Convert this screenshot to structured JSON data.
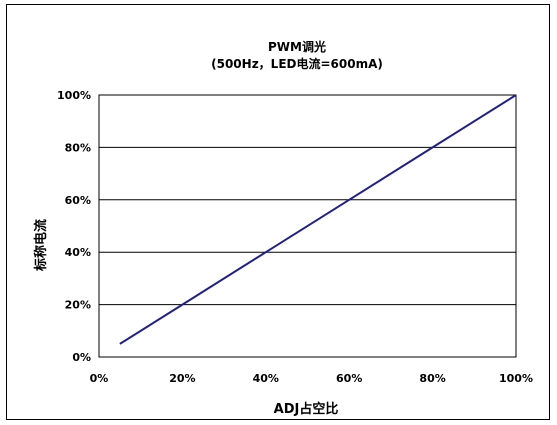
{
  "chart_data": {
    "type": "line",
    "title": "PWM调光",
    "subtitle": "(500Hz，LED电流=600mA)",
    "xlabel": "ADJ占空比",
    "ylabel": "标称电流",
    "xlim": [
      0,
      100
    ],
    "ylim": [
      0,
      100
    ],
    "x_ticks": [
      "0%",
      "20%",
      "40%",
      "60%",
      "80%",
      "100%"
    ],
    "y_ticks": [
      "0%",
      "20%",
      "40%",
      "60%",
      "80%",
      "100%"
    ],
    "x_tick_values": [
      0,
      20,
      40,
      60,
      80,
      100
    ],
    "y_tick_values": [
      0,
      20,
      40,
      60,
      80,
      100
    ],
    "grid": "horizontal",
    "legend": "none",
    "series": [
      {
        "color": "#1f1f8f",
        "x": [
          5,
          20,
          40,
          60,
          80,
          100
        ],
        "y": [
          5,
          20,
          40,
          60,
          80,
          100
        ]
      }
    ]
  }
}
